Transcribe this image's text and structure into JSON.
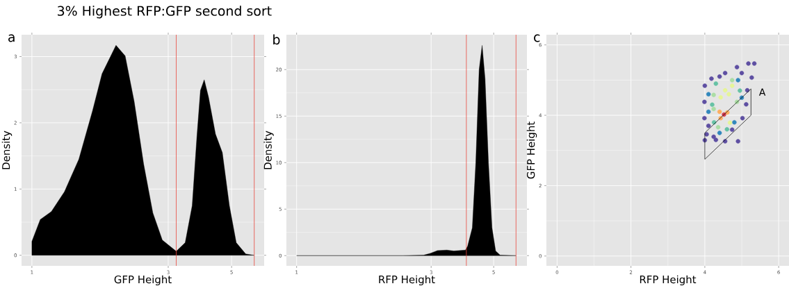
{
  "chart_data": [
    {
      "type": "area",
      "title": "3% Highest RFP:GFP second sort",
      "annotations": [
        "a"
      ],
      "xlabel": "GFP Height",
      "ylabel": "Density",
      "log": "x",
      "grid": true,
      "xlim": [
        0.92,
        6.5
      ],
      "xticks": [
        1,
        3,
        5
      ],
      "ylim": [
        -0.16,
        3.33
      ],
      "yticks": [
        0,
        1,
        2,
        3
      ],
      "series": [
        {
          "color": "#000000",
          "x": [
            1.0,
            1.0,
            1.07,
            1.17,
            1.3,
            1.46,
            1.63,
            1.76,
            1.97,
            2.12,
            2.28,
            2.46,
            2.65,
            2.86,
            3.2,
            3.44,
            3.64,
            3.78,
            3.89,
            4.01,
            4.15,
            4.39,
            4.64,
            4.91,
            5.19,
            5.6,
            6.0
          ],
          "values": [
            0,
            0.21,
            0.54,
            0.66,
            0.96,
            1.45,
            2.18,
            2.74,
            3.17,
            3.01,
            2.32,
            1.38,
            0.64,
            0.23,
            0.06,
            0.19,
            0.75,
            1.79,
            2.49,
            2.65,
            2.39,
            1.83,
            1.55,
            0.75,
            0.19,
            0.02,
            0
          ]
        }
      ],
      "ref_lines": [
        {
          "axis": "x",
          "value": 3.2,
          "color": "#e8473d"
        },
        {
          "axis": "x",
          "value": 6.0,
          "color": "#e8473d"
        }
      ]
    },
    {
      "type": "area",
      "annotations": [
        "b"
      ],
      "xlabel": "RFP Height",
      "ylabel": "Density",
      "log": "x",
      "grid": true,
      "xlim": [
        0.92,
        6.56
      ],
      "xticks": [
        1,
        3,
        5
      ],
      "ylim": [
        -1.1,
        23.75
      ],
      "yticks": [
        0,
        5,
        10,
        15,
        20
      ],
      "series": [
        {
          "color": "#000000",
          "x": [
            1.0,
            2.38,
            2.82,
            2.98,
            3.16,
            3.41,
            3.61,
            3.97,
            4.04,
            4.2,
            4.32,
            4.44,
            4.55,
            4.66,
            4.79,
            4.93,
            5.08,
            5.27,
            6.0
          ],
          "values": [
            0,
            0,
            0.05,
            0.25,
            0.55,
            0.6,
            0.5,
            0.6,
            1.0,
            3.0,
            10,
            20,
            22.6,
            19,
            10,
            3,
            0.5,
            0.05,
            0
          ]
        }
      ],
      "ref_lines": [
        {
          "axis": "x",
          "value": 4.0,
          "color": "#e8473d"
        },
        {
          "axis": "x",
          "value": 6.0,
          "color": "#e8473d"
        }
      ]
    },
    {
      "type": "scatter",
      "annotations": [
        "c",
        {
          "text": "A",
          "x": 5.25,
          "y": 4.75
        }
      ],
      "xlabel": "RFP Height",
      "ylabel": "GFP Height",
      "grid": true,
      "xlim": [
        -0.29,
        6.28
      ],
      "xticks": [
        0,
        2,
        4,
        6
      ],
      "ylim": [
        -0.28,
        6.29
      ],
      "yticks": [
        0,
        2,
        4,
        6
      ],
      "series": [
        {
          "type": "scatter",
          "marker": "circle",
          "x": [
            4.0,
            4.18,
            4.55,
            4.87,
            5.18,
            5.34,
            5.27,
            5.15,
            5.12,
            5.02,
            4.74,
            4.55,
            4.9,
            4.24,
            4.05,
            4.0,
            3.99,
            3.99,
            4.3,
            4.1,
            4.4,
            5.0,
            4.1,
            4.1,
            4.9,
            5.0,
            4.4,
            4.8,
            4.2,
            4.3,
            4.95,
            4.25,
            4.6,
            4.24,
            4.36,
            4.74,
            4.87,
            4.24,
            4.55,
            4.43,
            4.74,
            4.68,
            4.65,
            4.43,
            4.61,
            4.4,
            4.52
          ],
          "values": [
            4.84,
            5.04,
            5.2,
            5.37,
            5.47,
            5.47,
            5.07,
            4.71,
            4.31,
            3.92,
            3.59,
            3.26,
            3.26,
            3.39,
            3.46,
            3.29,
            3.92,
            4.38,
            3.3,
            3.7,
            5.1,
            5.2,
            4.6,
            4.1,
            5.0,
            4.5,
            3.5,
            3.8,
            4.3,
            4.9,
            4.7,
            3.8,
            3.6,
            4.58,
            3.66,
            5.0,
            4.38,
            4.18,
            4.71,
            4.51,
            4.84,
            3.79,
            4.6,
            3.92,
            4.08,
            4.1,
            4.02
          ],
          "colors": [
            "#5e4fa2",
            "#5e4fa2",
            "#5e4fa2",
            "#5e4fa2",
            "#5e4fa2",
            "#5e4fa2",
            "#5e4fa2",
            "#5e4fa2",
            "#5e4fa2",
            "#5e4fa2",
            "#5e4fa2",
            "#5e4fa2",
            "#5e4fa2",
            "#5e4fa2",
            "#5e4fa2",
            "#5e4fa2",
            "#5e4fa2",
            "#5e4fa2",
            "#5e4fa2",
            "#5e4fa2",
            "#5e4fa2",
            "#5e4fa2",
            "#3288bd",
            "#3288bd",
            "#3288bd",
            "#3288bd",
            "#3288bd",
            "#3288bd",
            "#66c2a5",
            "#66c2a5",
            "#66c2a5",
            "#66c2a5",
            "#66c2a5",
            "#abdda4",
            "#abdda4",
            "#abdda4",
            "#abdda4",
            "#abdda4",
            "#e6f598",
            "#e6f598",
            "#e6f598",
            "#e6f598",
            "#e6f598",
            "#fdae61",
            "#fdae61",
            "#fdae61",
            "#d53e4f"
          ]
        },
        {
          "type": "line",
          "color": "#000000",
          "x": [
            4.0,
            5.25
          ],
          "values": [
            3.5,
            4.75
          ]
        },
        {
          "type": "line",
          "color": "#000000",
          "x": [
            4.0,
            5.25
          ],
          "values": [
            2.75,
            4.0
          ]
        },
        {
          "type": "line",
          "color": "#000000",
          "x": [
            4.0,
            4.0
          ],
          "values": [
            2.75,
            3.5
          ]
        },
        {
          "type": "line",
          "color": "#000000",
          "x": [
            5.25,
            5.25
          ],
          "values": [
            4.0,
            4.75
          ]
        }
      ]
    }
  ]
}
